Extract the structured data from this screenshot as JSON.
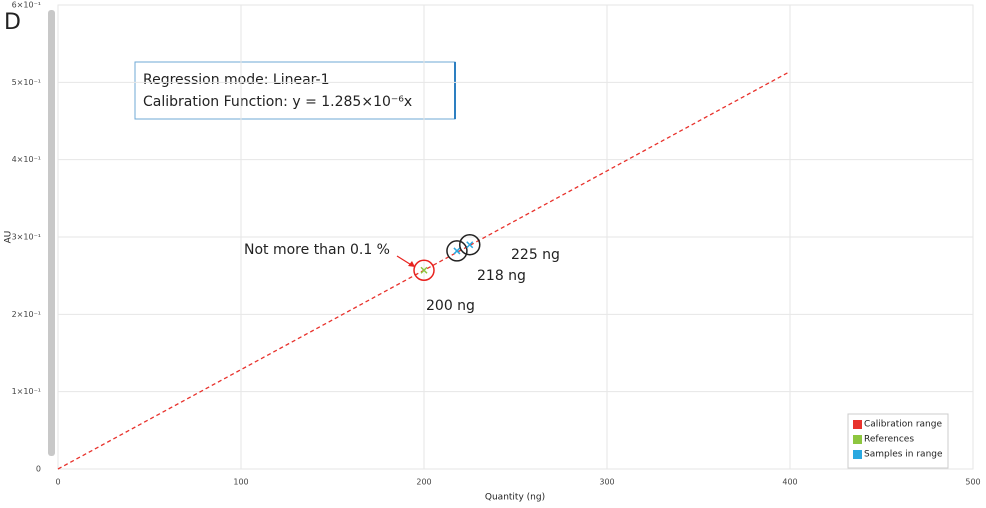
{
  "chart_data": {
    "type": "scatter",
    "panel_label": "D",
    "x_label": "Quantity (ng)",
    "y_label": "AU",
    "xlim": [
      0,
      500
    ],
    "xticks": [
      0,
      100,
      200,
      300,
      400,
      500
    ],
    "ylim": [
      0,
      0.6
    ],
    "yticks": [
      0,
      {
        "value": 0.1,
        "label": "1×10⁻¹"
      },
      {
        "value": 0.2,
        "label": "2×10⁻¹"
      },
      {
        "value": 0.3,
        "label": "3×10⁻¹"
      },
      {
        "value": 0.4,
        "label": "4×10⁻¹"
      },
      {
        "value": 0.5,
        "label": "5×10⁻¹"
      },
      {
        "value": 0.6,
        "label": "6×10⁻¹"
      }
    ],
    "grid": true,
    "legend": "lower right",
    "info_box": [
      "Regression mode: Linear-1",
      "Calibration Function: y = 1.285×10⁻⁶x"
    ],
    "series": [
      {
        "name": "Calibration range",
        "color": "#e8312b",
        "style": "dashed",
        "x": [
          0,
          400
        ],
        "values": [
          0,
          0.514
        ]
      },
      {
        "name": "References",
        "color": "#8dc63f",
        "style": "marker",
        "x": [
          200
        ],
        "values": [
          0.257
        ]
      },
      {
        "name": "Samples in range",
        "color": "#29a8e0",
        "style": "marker",
        "x": [
          218,
          225
        ],
        "values": [
          0.282,
          0.29
        ]
      }
    ],
    "annotations": [
      "Not more than 0.1 %",
      "200 ng",
      "218 ng",
      "225 ng"
    ]
  }
}
